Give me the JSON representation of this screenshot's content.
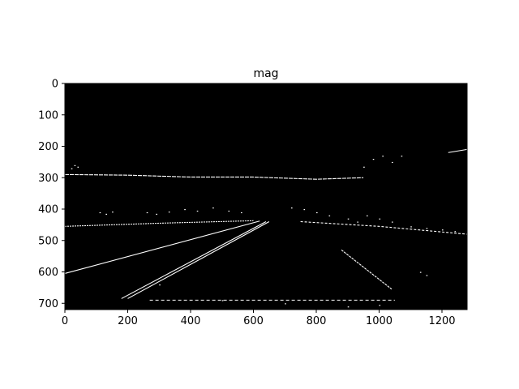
{
  "chart_data": {
    "type": "heatmap",
    "title": "mag",
    "xlabel": "",
    "ylabel": "",
    "xlim": [
      0,
      1280
    ],
    "ylim": [
      720,
      0
    ],
    "grid": false,
    "colormap": "binary (black background, white edges)",
    "colors": {
      "background": "#000000",
      "edge": "#ffffff"
    },
    "x_ticks": [
      0,
      200,
      400,
      600,
      800,
      1000,
      1200
    ],
    "y_ticks": [
      0,
      100,
      200,
      300,
      400,
      500,
      600,
      700
    ],
    "features": {
      "left_lane_outer": [
        [
          180,
          685
        ],
        [
          640,
          440
        ]
      ],
      "left_lane_inner": [
        [
          200,
          685
        ],
        [
          650,
          440
        ]
      ],
      "left_road_edge": [
        [
          0,
          605
        ],
        [
          620,
          438
        ]
      ],
      "right_lane_dashes": [
        [
          880,
          530
        ],
        [
          1040,
          655
        ]
      ],
      "horizon_upper": [
        [
          0,
          290
        ],
        [
          200,
          292
        ],
        [
          400,
          298
        ],
        [
          600,
          298
        ],
        [
          800,
          305
        ],
        [
          950,
          300
        ]
      ],
      "horizon_lower_left": [
        [
          0,
          455
        ],
        [
          300,
          445
        ],
        [
          600,
          437
        ]
      ],
      "horizon_lower_right": [
        [
          750,
          440
        ],
        [
          1000,
          455
        ],
        [
          1280,
          480
        ]
      ],
      "bottom_row": [
        [
          270,
          690
        ],
        [
          1050,
          690
        ]
      ],
      "tree_top_right": [
        [
          1220,
          220
        ],
        [
          1280,
          210
        ]
      ]
    }
  }
}
